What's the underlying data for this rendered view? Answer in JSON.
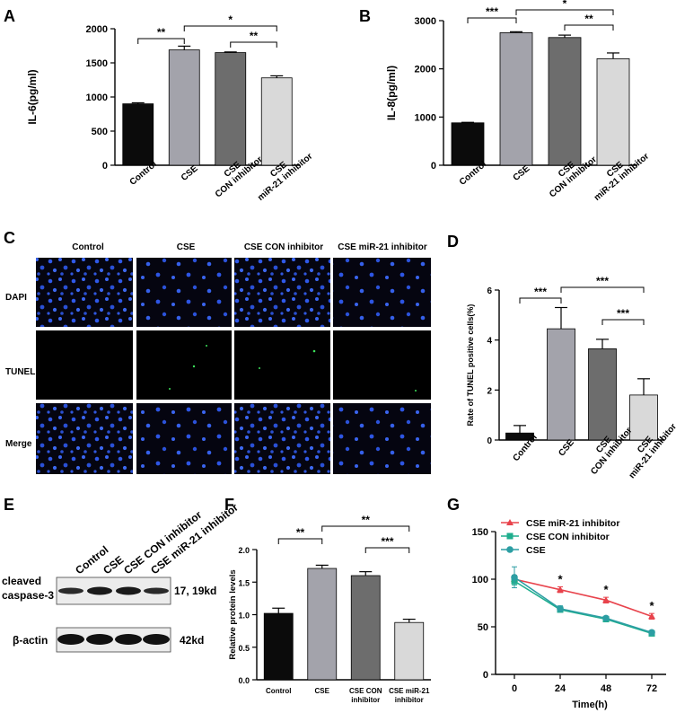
{
  "panels": {
    "A": {
      "letter": "A"
    },
    "B": {
      "letter": "B"
    },
    "C": {
      "letter": "C",
      "columns": [
        "Control",
        "CSE",
        "CSE CON inhibitor",
        "CSE miR-21 inhibitor"
      ],
      "rows": [
        "DAPI",
        "TUNEL",
        "Merge"
      ]
    },
    "D": {
      "letter": "D"
    },
    "E": {
      "letter": "E",
      "lanes": [
        "Control",
        "CSE",
        "CSE CON inhibitor",
        "CSE miR-21 inhibitor"
      ],
      "bands": [
        {
          "label": "cleaved caspase-3",
          "label_lines": [
            "cleaved",
            "caspase-3"
          ],
          "size": "17, 19kd"
        },
        {
          "label": "β-actin",
          "label_lines": [
            "β-actin"
          ],
          "size": "42kd"
        }
      ]
    },
    "F": {
      "letter": "F"
    },
    "G": {
      "letter": "G"
    }
  },
  "chart_data": [
    {
      "id": "A",
      "type": "bar",
      "categories": [
        "Control",
        "CSE",
        "CSE CON inhibitor",
        "CSE miR-21 inhibitor"
      ],
      "category_lines": [
        [
          "Control"
        ],
        [
          "CSE"
        ],
        [
          "CSE",
          "CON inhibitor"
        ],
        [
          "CSE",
          "miR-21 inhibitor"
        ]
      ],
      "values": [
        900,
        1690,
        1650,
        1280
      ],
      "errors": [
        15,
        55,
        10,
        30
      ],
      "bar_colors": [
        "#0b0b0b",
        "#a3a3ab",
        "#6d6d6d",
        "#d9d9d9"
      ],
      "ylabel": "IL-6(pg/ml)",
      "ylim": [
        0,
        2000
      ],
      "yticks": [
        0,
        500,
        1000,
        1500,
        2000
      ],
      "significance": [
        {
          "from": 0,
          "to": 1,
          "label": "**"
        },
        {
          "from": 1,
          "to": 3,
          "label": "*"
        },
        {
          "from": 2,
          "to": 3,
          "label": "**"
        }
      ]
    },
    {
      "id": "B",
      "type": "bar",
      "categories": [
        "Control",
        "CSE",
        "CSE CON inhibitor",
        "CSE miR-21 inhibitor"
      ],
      "category_lines": [
        [
          "Control"
        ],
        [
          "CSE"
        ],
        [
          "CSE",
          "CON inhibitor"
        ],
        [
          "CSE",
          "miR-21 inhibitor"
        ]
      ],
      "values": [
        880,
        2750,
        2650,
        2210
      ],
      "errors": [
        10,
        20,
        50,
        120
      ],
      "bar_colors": [
        "#0b0b0b",
        "#a3a3ab",
        "#6d6d6d",
        "#d9d9d9"
      ],
      "ylabel": "IL-8(pg/ml)",
      "ylim": [
        0,
        3000
      ],
      "yticks": [
        0,
        1000,
        2000,
        3000
      ],
      "significance": [
        {
          "from": 0,
          "to": 1,
          "label": "***"
        },
        {
          "from": 1,
          "to": 3,
          "label": "*"
        },
        {
          "from": 2,
          "to": 3,
          "label": "**"
        }
      ]
    },
    {
      "id": "D",
      "type": "bar",
      "categories": [
        "Control",
        "CSE",
        "CSE CON inhibitor",
        "CSE miR-21 inhibitor"
      ],
      "category_lines": [
        [
          "Control"
        ],
        [
          "CSE"
        ],
        [
          "CSE",
          "CON inhibitor"
        ],
        [
          "CSE",
          "miR-21 inhibitor"
        ]
      ],
      "values": [
        0.28,
        4.45,
        3.65,
        1.8
      ],
      "errors": [
        0.3,
        0.85,
        0.38,
        0.65
      ],
      "bar_colors": [
        "#0b0b0b",
        "#a3a3ab",
        "#6d6d6d",
        "#d9d9d9"
      ],
      "ylabel": "Rate of TUNEL positive cells(%)",
      "ylim": [
        0,
        6
      ],
      "yticks": [
        0,
        2,
        4,
        6
      ],
      "significance": [
        {
          "from": 0,
          "to": 1,
          "label": "***"
        },
        {
          "from": 1,
          "to": 3,
          "label": "***"
        },
        {
          "from": 2,
          "to": 3,
          "label": "***"
        }
      ]
    },
    {
      "id": "F",
      "type": "bar",
      "categories": [
        "Control",
        "CSE",
        "CSE CON inhibitor",
        "CSE miR-21 inhibitor"
      ],
      "category_lines": [
        [
          "Control"
        ],
        [
          "CSE"
        ],
        [
          "CSE CON",
          "inhibitor"
        ],
        [
          "CSE miR-21",
          "inhibitor"
        ]
      ],
      "values": [
        1.02,
        1.71,
        1.6,
        0.88
      ],
      "errors": [
        0.08,
        0.05,
        0.06,
        0.05
      ],
      "bar_colors": [
        "#0b0b0b",
        "#a3a3ab",
        "#6d6d6d",
        "#d9d9d9"
      ],
      "ylabel": "Relative protein levels",
      "ylim": [
        0,
        2.0
      ],
      "yticks": [
        "0.0",
        "0.5",
        "1.0",
        "1.5",
        "2.0"
      ],
      "significance": [
        {
          "from": 0,
          "to": 1,
          "label": "**"
        },
        {
          "from": 1,
          "to": 3,
          "label": "**"
        },
        {
          "from": 2,
          "to": 3,
          "label": "***"
        }
      ]
    },
    {
      "id": "G",
      "type": "line",
      "x": [
        0,
        24,
        48,
        72
      ],
      "xlabel": "Time(h)",
      "ylim": [
        0,
        150
      ],
      "yticks": [
        0,
        50,
        100,
        150
      ],
      "series": [
        {
          "name": "CSE miR-21 inhibitor",
          "color": "#e8434c",
          "marker": "triangle",
          "values": [
            100,
            89,
            78,
            61
          ],
          "errors": [
            4,
            3,
            3,
            3
          ]
        },
        {
          "name": "CSE CON inhibitor",
          "color": "#1fae8e",
          "marker": "square",
          "values": [
            98,
            68,
            58,
            43
          ],
          "errors": [
            4,
            2,
            2,
            2
          ]
        },
        {
          "name": "CSE",
          "color": "#2c9ea3",
          "marker": "circle",
          "values": [
            102,
            69,
            59,
            44
          ],
          "errors": [
            11,
            3,
            2,
            2
          ]
        }
      ],
      "annotations": [
        {
          "x": 24,
          "label": "*"
        },
        {
          "x": 48,
          "label": "*"
        },
        {
          "x": 72,
          "label": "*"
        }
      ]
    }
  ]
}
